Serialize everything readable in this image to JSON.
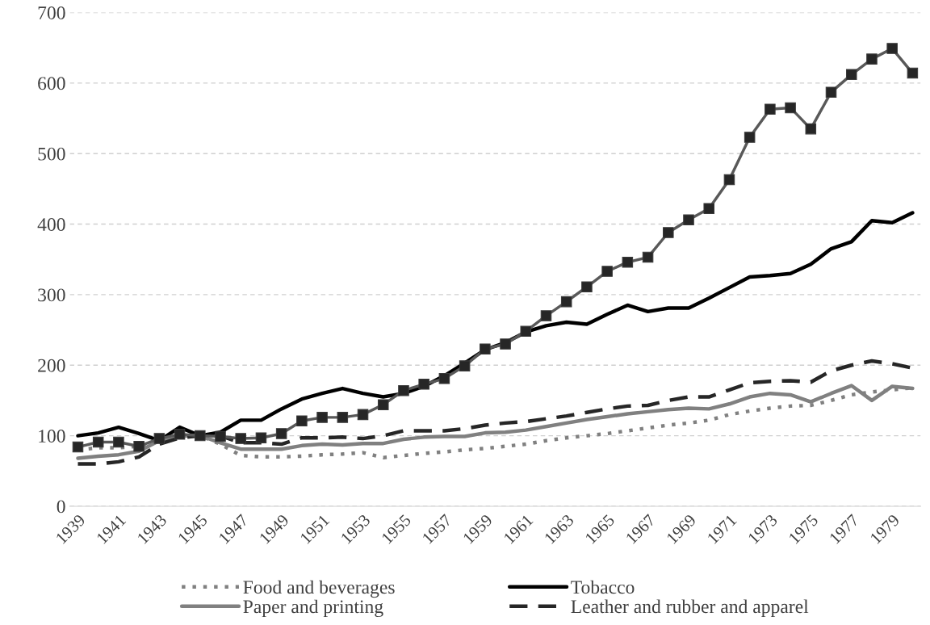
{
  "chart_data": {
    "type": "line",
    "categories": [
      "1939",
      null,
      "1941",
      null,
      "1943",
      null,
      "1945",
      null,
      "1947",
      null,
      "1949",
      null,
      "1951",
      null,
      "1953",
      null,
      "1955",
      null,
      "1957",
      null,
      "1959",
      null,
      "1961",
      null,
      "1963",
      null,
      "1965",
      null,
      "1967",
      null,
      "1969",
      null,
      "1971",
      null,
      "1973",
      null,
      "1975",
      null,
      "1977",
      null,
      "1979",
      null
    ],
    "ylim": [
      0,
      700
    ],
    "yticks": [
      0,
      100,
      200,
      300,
      400,
      500,
      600,
      700
    ],
    "grid": "y",
    "legend": "bottom",
    "series": [
      {
        "color": "#595959",
        "marker": "square",
        "line_style": "solid",
        "values": [
          84,
          91,
          91,
          85,
          96,
          102,
          100,
          99,
          96,
          97,
          103,
          121,
          126,
          126,
          130,
          144,
          164,
          173,
          181,
          199,
          223,
          230,
          248,
          270,
          290,
          311,
          333,
          346,
          353,
          388,
          406,
          422,
          463,
          523,
          563,
          565,
          535,
          587,
          612,
          634,
          649,
          614
        ]
      },
      {
        "name": "Food and beverages",
        "color": "#808080",
        "marker": "none",
        "line_style": "dotted",
        "values": [
          80,
          83,
          83,
          85,
          92,
          100,
          100,
          88,
          72,
          70,
          70,
          71,
          73,
          74,
          76,
          69,
          72,
          75,
          77,
          80,
          82,
          85,
          88,
          93,
          97,
          100,
          103,
          107,
          111,
          115,
          118,
          122,
          130,
          135,
          139,
          142,
          143,
          150,
          158,
          162,
          165,
          168
        ]
      },
      {
        "name": "Tobacco",
        "color": "#000000",
        "marker": "none",
        "line_style": "solid",
        "values": [
          100,
          104,
          112,
          103,
          93,
          112,
          100,
          105,
          122,
          122,
          138,
          152,
          160,
          167,
          160,
          155,
          160,
          170,
          185,
          203,
          222,
          232,
          247,
          256,
          261,
          258,
          272,
          285,
          276,
          281,
          281,
          295,
          310,
          325,
          327,
          330,
          343,
          365,
          375,
          405,
          402,
          416
        ]
      },
      {
        "name": "Paper and printing",
        "color": "#808080",
        "marker": "none",
        "line_style": "solid",
        "values": [
          68,
          71,
          73,
          78,
          93,
          100,
          100,
          90,
          81,
          81,
          81,
          86,
          88,
          87,
          89,
          89,
          95,
          98,
          99,
          99,
          104,
          105,
          108,
          113,
          118,
          123,
          127,
          131,
          134,
          137,
          139,
          138,
          145,
          155,
          160,
          158,
          148,
          160,
          171,
          150,
          170,
          167
        ]
      },
      {
        "name": "Leather and rubber and apparel",
        "color": "#262626",
        "marker": "none",
        "line_style": "dashed",
        "values": [
          60,
          60,
          63,
          70,
          88,
          97,
          100,
          100,
          90,
          90,
          88,
          97,
          97,
          98,
          96,
          100,
          107,
          107,
          107,
          110,
          115,
          118,
          120,
          124,
          128,
          133,
          138,
          142,
          143,
          150,
          155,
          155,
          165,
          175,
          177,
          178,
          176,
          192,
          200,
          206,
          202,
          196
        ]
      }
    ]
  }
}
